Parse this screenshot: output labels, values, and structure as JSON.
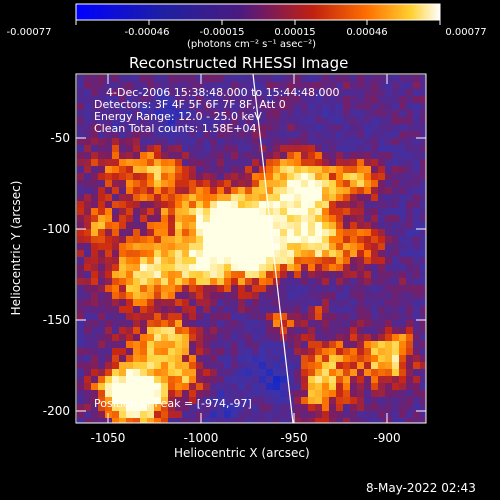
{
  "colorbar": {
    "ticks": [
      "-0.00077",
      "-0.00046",
      "-0.00015",
      "0.00015",
      "0.00046",
      "0.00077"
    ],
    "unit_label": "(photons cm⁻² s⁻¹ asec⁻²)"
  },
  "plot": {
    "title": "Reconstructed RHESSI Image",
    "info_lines": [
      "4-Dec-2006 15:38:48.000 to 15:44:48.000",
      "Detectors: 3F 4F 5F 6F 7F 8F, Att 0",
      "Energy Range: 12.0 - 25.0 keV",
      "Clean     Total counts: 1.58E+04"
    ],
    "peak_label": "Position of Peak = [-974,-97]",
    "xlabel": "Heliocentric X (arcsec)",
    "ylabel": "Heliocentric Y (arcsec)",
    "xticks": [
      "-1050",
      "-1000",
      "-950",
      "-900"
    ],
    "yticks": [
      "-50",
      "-100",
      "-150",
      "-200"
    ]
  },
  "timestamp": "8-May-2022 02:43"
}
